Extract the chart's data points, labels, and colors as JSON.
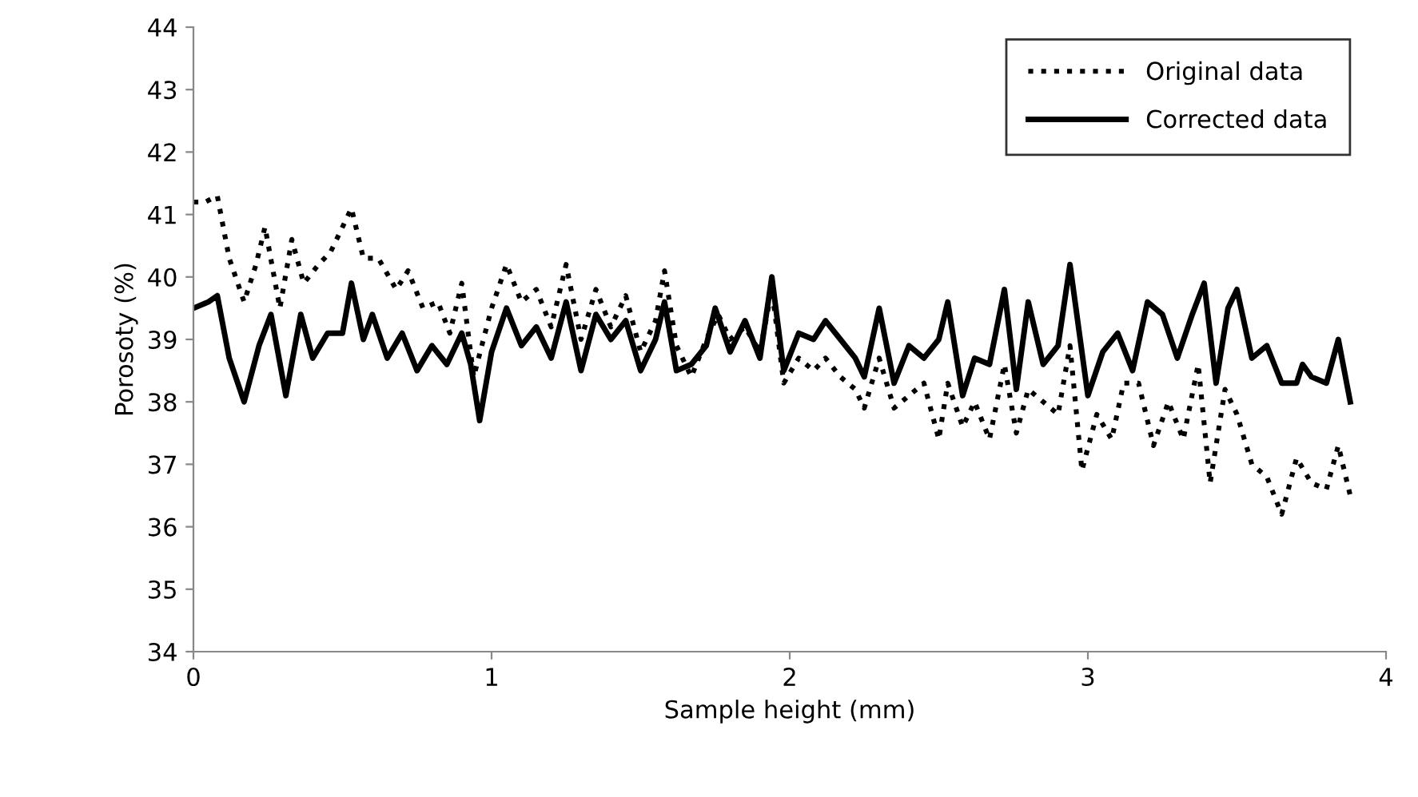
{
  "chart_data": {
    "type": "line",
    "xlabel": "Sample height (mm)",
    "ylabel": "Porosoty (%)",
    "xlim": [
      0,
      4
    ],
    "xticks": [
      0,
      1,
      2,
      3,
      4
    ],
    "ylim": [
      34,
      44
    ],
    "yticks": [
      34,
      35,
      36,
      37,
      38,
      39,
      40,
      41,
      42,
      43,
      44
    ],
    "grid": false,
    "legend": "top right",
    "marker": "none",
    "series": [
      {
        "name": "Original data",
        "color": "#000000",
        "line_style": "dotted",
        "x": [
          0,
          0.04,
          0.08,
          0.12,
          0.17,
          0.21,
          0.24,
          0.29,
          0.33,
          0.37,
          0.42,
          0.46,
          0.53,
          0.57,
          0.62,
          0.68,
          0.72,
          0.77,
          0.82,
          0.86,
          0.9,
          0.94,
          1.0,
          1.05,
          1.1,
          1.15,
          1.2,
          1.25,
          1.3,
          1.35,
          1.4,
          1.45,
          1.5,
          1.55,
          1.58,
          1.62,
          1.67,
          1.72,
          1.76,
          1.8,
          1.85,
          1.9,
          1.94,
          1.98,
          2.03,
          2.08,
          2.12,
          2.17,
          2.22,
          2.25,
          2.3,
          2.35,
          2.4,
          2.45,
          2.5,
          2.53,
          2.58,
          2.62,
          2.67,
          2.72,
          2.76,
          2.8,
          2.85,
          2.9,
          2.94,
          2.98,
          3.03,
          3.08,
          3.12,
          3.17,
          3.22,
          3.27,
          3.32,
          3.37,
          3.41,
          3.46,
          3.5,
          3.55,
          3.6,
          3.65,
          3.7,
          3.75,
          3.8,
          3.84,
          3.88
        ],
        "values": [
          41.2,
          41.2,
          41.3,
          40.3,
          39.6,
          40.2,
          40.8,
          39.5,
          40.6,
          39.9,
          40.2,
          40.4,
          41.1,
          40.3,
          40.3,
          39.8,
          40.1,
          39.5,
          39.6,
          39.1,
          39.9,
          38.4,
          39.5,
          40.2,
          39.6,
          39.8,
          39.2,
          40.2,
          39.0,
          39.8,
          39.2,
          39.7,
          38.8,
          39.3,
          40.1,
          38.9,
          38.4,
          39.0,
          39.4,
          39.0,
          39.2,
          38.8,
          39.8,
          38.3,
          38.7,
          38.5,
          38.7,
          38.4,
          38.2,
          37.9,
          38.7,
          37.9,
          38.1,
          38.3,
          37.4,
          38.3,
          37.6,
          38.0,
          37.4,
          38.6,
          37.5,
          38.2,
          38.0,
          37.8,
          38.9,
          36.9,
          37.8,
          37.4,
          38.3,
          38.3,
          37.3,
          38.0,
          37.4,
          38.6,
          36.7,
          38.2,
          37.8,
          37.0,
          36.8,
          36.2,
          37.1,
          36.7,
          36.6,
          37.3,
          36.5
        ]
      },
      {
        "name": "Corrected data",
        "color": "#000000",
        "line_style": "solid",
        "x": [
          0,
          0.05,
          0.08,
          0.12,
          0.17,
          0.22,
          0.26,
          0.31,
          0.36,
          0.4,
          0.45,
          0.5,
          0.53,
          0.57,
          0.6,
          0.65,
          0.7,
          0.75,
          0.8,
          0.85,
          0.9,
          0.93,
          0.96,
          1.0,
          1.05,
          1.1,
          1.15,
          1.2,
          1.25,
          1.3,
          1.35,
          1.4,
          1.45,
          1.5,
          1.55,
          1.58,
          1.62,
          1.67,
          1.72,
          1.75,
          1.8,
          1.85,
          1.9,
          1.94,
          1.98,
          2.03,
          2.08,
          2.12,
          2.17,
          2.22,
          2.25,
          2.3,
          2.35,
          2.4,
          2.45,
          2.5,
          2.53,
          2.58,
          2.62,
          2.67,
          2.72,
          2.76,
          2.8,
          2.85,
          2.9,
          2.94,
          3.0,
          3.05,
          3.1,
          3.15,
          3.2,
          3.25,
          3.3,
          3.35,
          3.39,
          3.43,
          3.47,
          3.5,
          3.55,
          3.6,
          3.65,
          3.7,
          3.72,
          3.75,
          3.8,
          3.84,
          3.88
        ],
        "values": [
          39.5,
          39.6,
          39.7,
          38.7,
          38.0,
          38.9,
          39.4,
          38.1,
          39.4,
          38.7,
          39.1,
          39.1,
          39.9,
          39.0,
          39.4,
          38.7,
          39.1,
          38.5,
          38.9,
          38.6,
          39.1,
          38.6,
          37.7,
          38.8,
          39.5,
          38.9,
          39.2,
          38.7,
          39.6,
          38.5,
          39.4,
          39.0,
          39.3,
          38.5,
          39.0,
          39.6,
          38.5,
          38.6,
          38.9,
          39.5,
          38.8,
          39.3,
          38.7,
          40.0,
          38.5,
          39.1,
          39.0,
          39.3,
          39.0,
          38.7,
          38.4,
          39.5,
          38.3,
          38.9,
          38.7,
          39.0,
          39.6,
          38.1,
          38.7,
          38.6,
          39.8,
          38.2,
          39.6,
          38.6,
          38.9,
          40.2,
          38.1,
          38.8,
          39.1,
          38.5,
          39.6,
          39.4,
          38.7,
          39.4,
          39.9,
          38.3,
          39.5,
          39.8,
          38.7,
          38.9,
          38.3,
          38.3,
          38.6,
          38.4,
          38.3,
          39.0,
          38.0
        ]
      }
    ]
  }
}
